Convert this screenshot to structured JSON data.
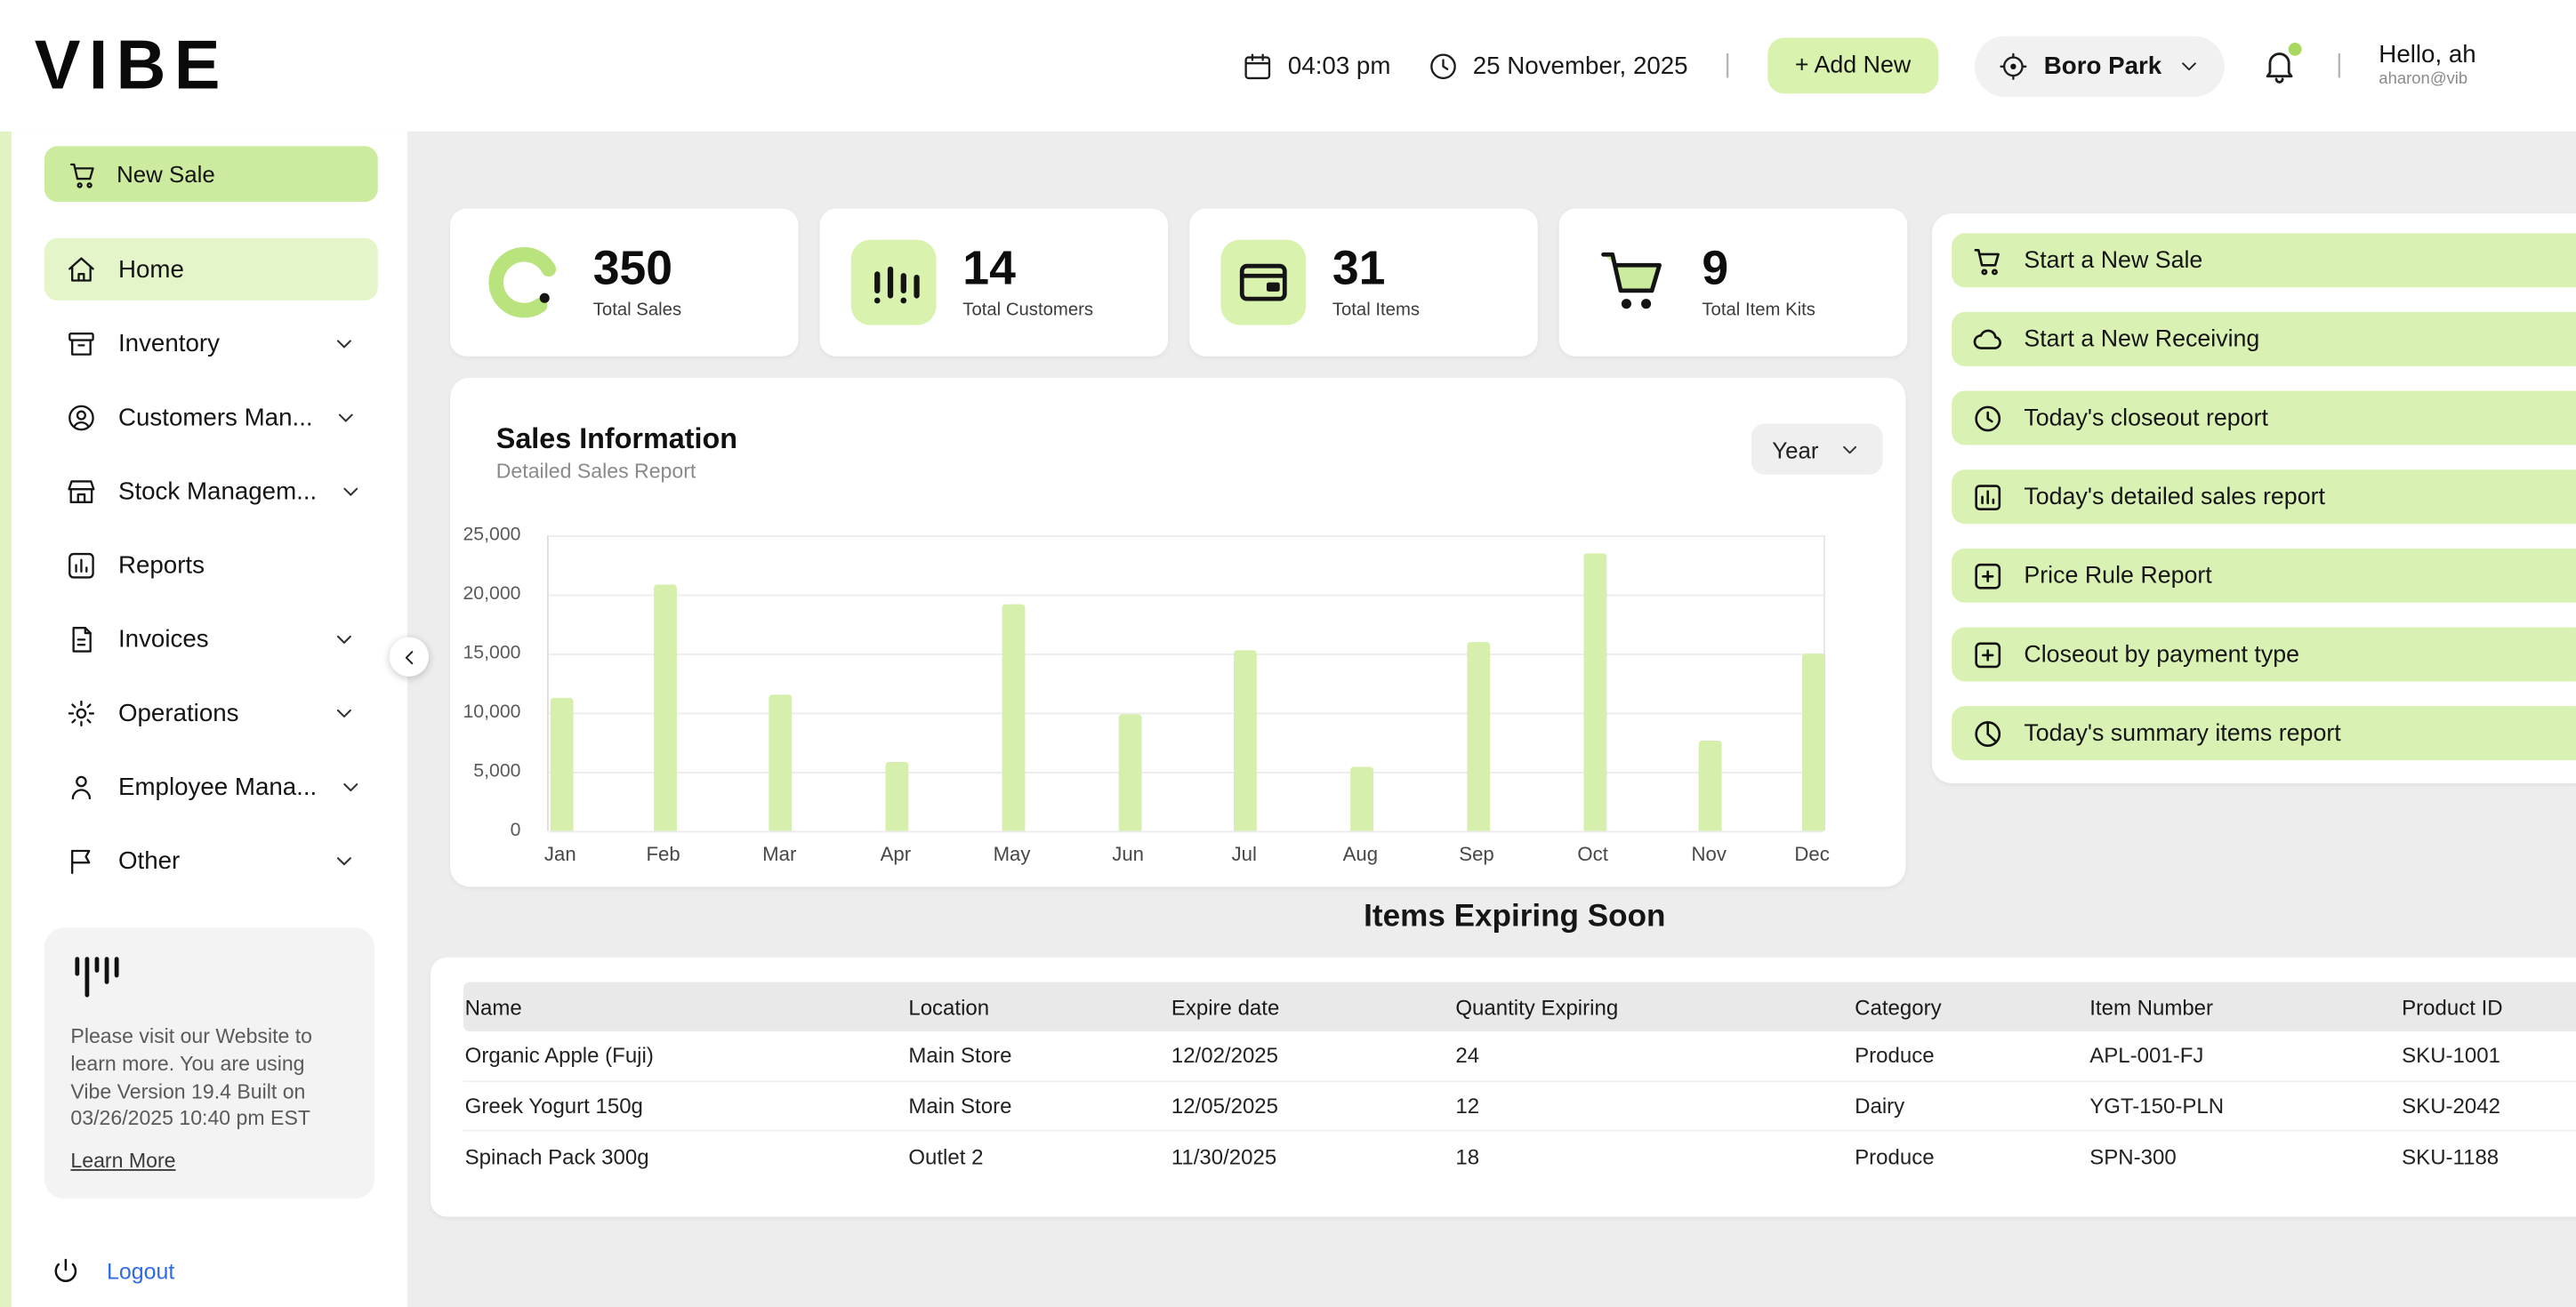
{
  "colors": {
    "accent_green": "#d9f2ae",
    "accent_green_soft": "#e4f5c9",
    "bar_green": "#d6efad",
    "background": "#ededed",
    "link_blue": "#2e6be6"
  },
  "topbar": {
    "logo": "VIBE",
    "time": "04:03 pm",
    "date": "25 November, 2025",
    "divider": "|",
    "add_new": "+ Add New",
    "location": "Boro Park",
    "greeting": "Hello, ah",
    "greeting_sub": "aharon@vib"
  },
  "sidebar": {
    "new_sale": "New Sale",
    "items": [
      {
        "label": "Home"
      },
      {
        "label": "Inventory"
      },
      {
        "label": "Customers Man..."
      },
      {
        "label": "Stock Managem..."
      },
      {
        "label": "Reports"
      },
      {
        "label": "Invoices"
      },
      {
        "label": "Operations"
      },
      {
        "label": "Employee Mana..."
      },
      {
        "label": "Other"
      }
    ],
    "info_text": "Please visit our Website to learn more. You are using Vibe Version 19.4 Built on 03/26/2025 10:40 pm EST",
    "learn_more": "Learn More",
    "logout": "Logout"
  },
  "stats": [
    {
      "value": "350",
      "label": "Total Sales"
    },
    {
      "value": "14",
      "label": "Total Customers"
    },
    {
      "value": "31",
      "label": "Total Items"
    },
    {
      "value": "9",
      "label": "Total Item Kits"
    }
  ],
  "sales_card": {
    "title": "Sales Information",
    "subtitle": "Detailed Sales Report",
    "period": "Year"
  },
  "chart_data": {
    "type": "bar",
    "title": "Sales Information",
    "xlabel": "",
    "ylabel": "",
    "categories": [
      "Jan",
      "Feb",
      "Mar",
      "Apr",
      "May",
      "Jun",
      "Jul",
      "Aug",
      "Sep",
      "Oct",
      "Nov",
      "Dec"
    ],
    "values": [
      11200,
      20900,
      11500,
      5800,
      19200,
      9800,
      15300,
      5400,
      16000,
      23500,
      7700,
      15000
    ],
    "ylim": [
      0,
      25000
    ],
    "yticks": [
      0,
      5000,
      10000,
      15000,
      20000,
      25000
    ],
    "ytick_labels": [
      "0",
      "5,000",
      "10,000",
      "15,000",
      "20,000",
      "25,000"
    ],
    "bar_color": "#d6efad",
    "grid": true,
    "legend": false
  },
  "quick_actions": [
    "Start a New Sale",
    "Start a New Receiving",
    "Today's closeout report",
    "Today's detailed sales report",
    "Price Rule Report",
    "Closeout by payment type",
    "Today's summary items report"
  ],
  "expiring": {
    "title": "Items Expiring Soon",
    "columns": [
      "Name",
      "Location",
      "Expire date",
      "Quantity Expiring",
      "Category",
      "Item Number",
      "Product ID"
    ],
    "rows": [
      {
        "name": "Organic Apple (Fuji)",
        "location": "Main Store",
        "expire": "12/02/2025",
        "qty": "24",
        "category": "Produce",
        "item_number": "APL-001-FJ",
        "product_id": "SKU-1001"
      },
      {
        "name": "Greek Yogurt 150g",
        "location": "Main Store",
        "expire": "12/05/2025",
        "qty": "12",
        "category": "Dairy",
        "item_number": "YGT-150-PLN",
        "product_id": "SKU-2042"
      },
      {
        "name": "Spinach Pack 300g",
        "location": "Outlet 2",
        "expire": "11/30/2025",
        "qty": "18",
        "category": "Produce",
        "item_number": "SPN-300",
        "product_id": "SKU-1188"
      }
    ]
  }
}
